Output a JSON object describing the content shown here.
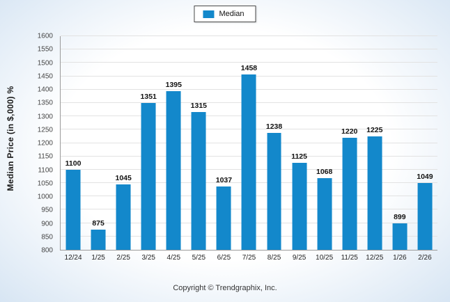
{
  "legend": {
    "label": "Median",
    "color": "#1388cb"
  },
  "footer": {
    "text": "Copyright © Trendgraphix, Inc."
  },
  "chart_data": {
    "type": "bar",
    "title": "",
    "xlabel": "",
    "ylabel": "Median Price (in $,000) %",
    "categories": [
      "12/24",
      "1/25",
      "2/25",
      "3/25",
      "4/25",
      "5/25",
      "6/25",
      "7/25",
      "8/25",
      "9/25",
      "10/25",
      "11/25",
      "12/25",
      "1/26",
      "2/26"
    ],
    "values": [
      1100,
      875,
      1045,
      1351,
      1395,
      1315,
      1037,
      1458,
      1238,
      1125,
      1068,
      1220,
      1225,
      899,
      1049
    ],
    "series_name": "Median",
    "ylim": [
      800,
      1600
    ],
    "ytick_step": 50,
    "bar_color": "#1388cb",
    "grid": true,
    "legend_position": "top-center"
  }
}
